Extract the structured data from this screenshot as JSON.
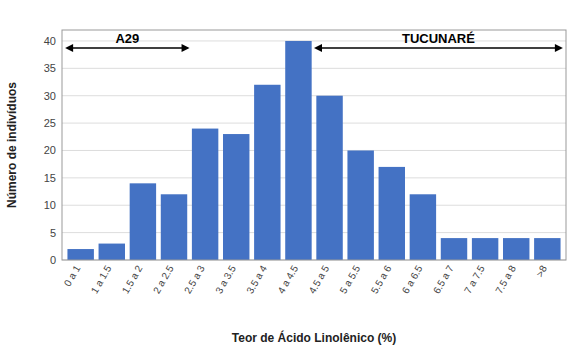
{
  "chart_data": {
    "type": "bar",
    "categories": [
      "0 a 1",
      "1 a 1.5",
      "1.5 a 2",
      "2 a 2.5",
      "2.5 a 3",
      "3 a 3.5",
      "3.5 a 4",
      "4 a 4.5",
      "4.5 a 5",
      "5 a 5.5",
      "5.5 a 6",
      "6 a 6.5",
      "6.5 a 7",
      "7 a 7.5",
      "7.5 a 8",
      ">8"
    ],
    "values": [
      2,
      3,
      14,
      12,
      24,
      23,
      32,
      40,
      30,
      20,
      17,
      12,
      4,
      4,
      4,
      4
    ],
    "color": "#4472C4",
    "xlabel": "Teor de Ácido Linolênico (%)",
    "ylabel": "Número de indivíduos",
    "ylim": [
      0,
      42
    ],
    "yticks": [
      0,
      5,
      10,
      15,
      20,
      25,
      30,
      35,
      40
    ],
    "grid": true,
    "annotations": [
      {
        "text": "A29",
        "categories": [
          "0 a 1",
          "2 a 2.5"
        ]
      },
      {
        "text": "TUCUNARÉ",
        "categories": [
          "4.5 a 5",
          ">8"
        ]
      }
    ]
  }
}
